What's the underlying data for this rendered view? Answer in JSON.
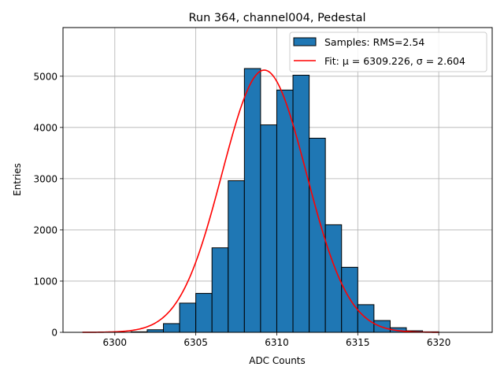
{
  "chart_data": {
    "type": "bar",
    "title": "Run 364, channel004, Pedestal",
    "xlabel": "ADC Counts",
    "ylabel": "Entries",
    "xlim": [
      6296.8,
      6323.3
    ],
    "ylim": [
      0,
      5950
    ],
    "xticks": [
      6300,
      6305,
      6310,
      6315,
      6320
    ],
    "yticks": [
      0,
      1000,
      2000,
      3000,
      4000,
      5000
    ],
    "grid": true,
    "legend_position": "top-right",
    "bin_width": 1,
    "bins": [
      {
        "x": 6301,
        "count": 10
      },
      {
        "x": 6302,
        "count": 50
      },
      {
        "x": 6303,
        "count": 170
      },
      {
        "x": 6304,
        "count": 570
      },
      {
        "x": 6305,
        "count": 760
      },
      {
        "x": 6306,
        "count": 1650
      },
      {
        "x": 6307,
        "count": 2960
      },
      {
        "x": 6308,
        "count": 5150
      },
      {
        "x": 6309,
        "count": 4050
      },
      {
        "x": 6310,
        "count": 4730
      },
      {
        "x": 6311,
        "count": 5020
      },
      {
        "x": 6312,
        "count": 3790
      },
      {
        "x": 6313,
        "count": 2100
      },
      {
        "x": 6314,
        "count": 1270
      },
      {
        "x": 6315,
        "count": 540
      },
      {
        "x": 6316,
        "count": 230
      },
      {
        "x": 6317,
        "count": 90
      },
      {
        "x": 6318,
        "count": 30
      },
      {
        "x": 6319,
        "count": 10
      }
    ],
    "fit": {
      "mu": 6309.226,
      "sigma": 2.604,
      "amplitude": 5120,
      "x_range": [
        6298,
        6320
      ]
    },
    "series": [
      {
        "name": "Samples: RMS=2.54",
        "kind": "histogram",
        "color": "#1f77b4"
      },
      {
        "name": "Fit: μ = 6309.226, σ = 2.604",
        "kind": "line",
        "color": "#ff0000"
      }
    ]
  }
}
